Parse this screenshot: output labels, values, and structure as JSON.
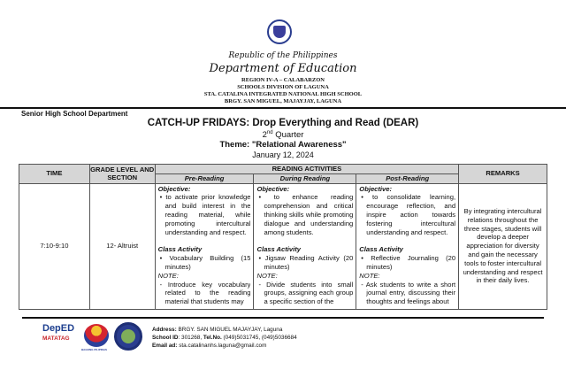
{
  "header": {
    "republic": "Republic of the Philippines",
    "department": "Department of Education",
    "region": "REGION IV-A – CALABARZON",
    "division": "SCHOOLS DIVISION OF LAGUNA",
    "school": "STA. CATALINA INTEGRATED NATIONAL HIGH SCHOOL",
    "address": "BRGY. SAN MIGUEL, MAJAYJAY, LAGUNA"
  },
  "department_label": "Senior High School Department",
  "title": "CATCH-UP FRIDAYS: Drop Everything and Read (DEAR)",
  "quarter_num": "2",
  "quarter_sup": "nd",
  "quarter_word": " Quarter",
  "theme": "Theme: \"Relational Awareness\"",
  "date": "January 12, 2024",
  "table": {
    "headers": {
      "time": "TIME",
      "grade": "GRADE LEVEL AND SECTION",
      "activities": "READING ACTIVITIES",
      "remarks": "REMARKS",
      "pre": "Pre-Reading",
      "during": "During Reading",
      "post": "Post-Reading"
    },
    "row": {
      "time": "7:10-9:10",
      "grade": "12- Altruist",
      "pre": {
        "objective_label": "Objective:",
        "objective": "• to activate prior knowledge and build interest in the reading material, while promoting intercultural understanding and respect.",
        "activity_label": "Class Activity",
        "activity": "• Vocabulary Building (15 minutes)",
        "note_label": "NOTE:",
        "note": "- Introduce key vocabulary related to the reading material that students may"
      },
      "during": {
        "objective_label": "Objective:",
        "objective": "• to enhance reading comprehension and critical thinking skills while promoting dialogue and understanding among students.",
        "activity_label": "Class Activity",
        "activity": "• Jigsaw Reading Activity (20 minutes)",
        "note_label": "NOTE:",
        "note": "- Divide students into small groups, assigning each group a specific section of the"
      },
      "post": {
        "objective_label": "Objective:",
        "objective": "• to consolidate learning, encourage reflection, and inspire action towards fostering intercultural understanding and respect.",
        "activity_label": "Class Activity",
        "activity": "• Reflective Journaling (20 minutes)",
        "note_label": "NOTE:",
        "note": "- Ask students to write a short journal entry, discussing their thoughts and feelings about"
      },
      "remarks": "By integrating intercultural relations throughout the three stages, students will develop a deeper appreciation for diversity and gain the necessary tools to foster intercultural understanding and respect in their daily lives."
    }
  },
  "footer": {
    "deped_logo": "DepED",
    "matatag_logo": "MATATAG",
    "bagong_pilipinas_logo": "BAGONG PILIPINAS",
    "address_label": "Address:",
    "address": " BRGY. SAN MIGUEL MAJAYJAY, Laguna",
    "school_id_label": "School ID",
    "school_id": ": 301268, ",
    "tel_label": "Tel.No.",
    "tel": " (049)5031745, (049)5036684",
    "email_label": "Email ad:",
    "email": " sta.catalinanhs.laguna@gmail.com"
  }
}
